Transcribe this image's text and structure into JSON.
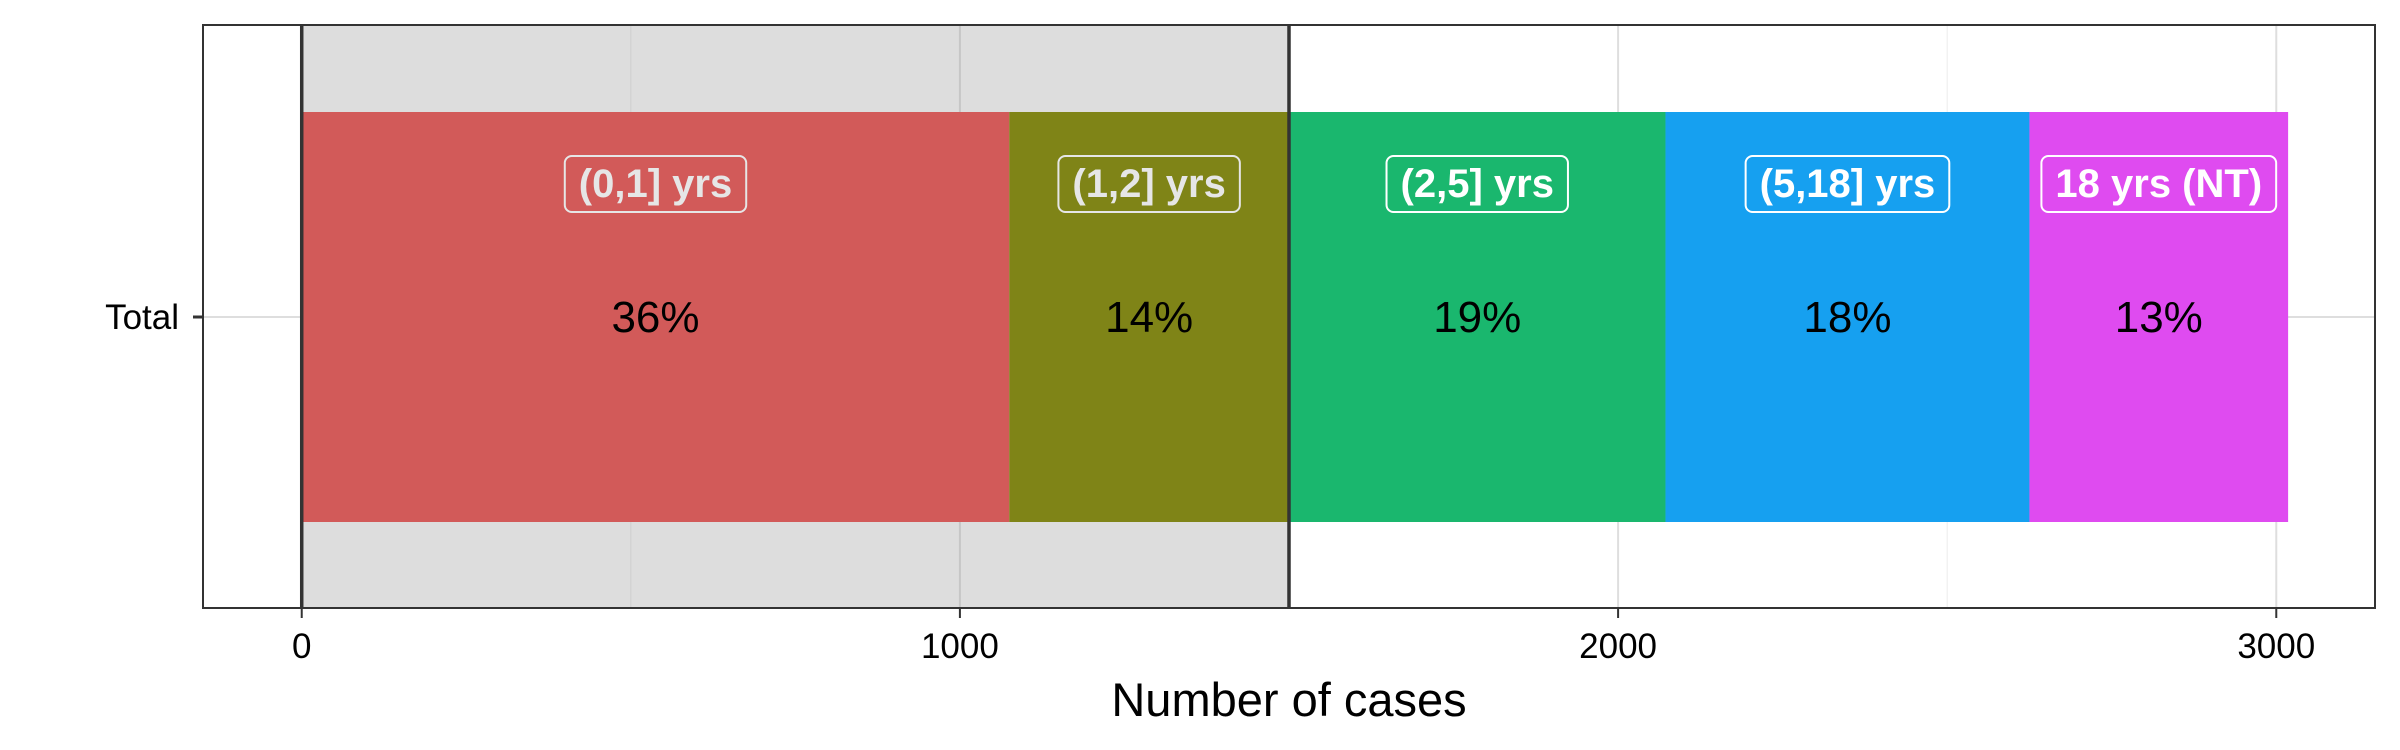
{
  "chart_data": {
    "type": "bar",
    "orientation": "horizontal",
    "stacked": true,
    "categories": [
      "Total"
    ],
    "xlabel": "Number of cases",
    "ylabel": "",
    "title": "",
    "xlim": [
      -150,
      3150
    ],
    "x_ticks": [
      0,
      1000,
      2000,
      3000
    ],
    "x_tick_labels": [
      "0",
      "1000",
      "2000",
      "3000"
    ],
    "grid": true,
    "shaded_region": {
      "from": 0,
      "to": 1500,
      "color": "#d9d9d9"
    },
    "series": [
      {
        "name": "(0,1] yrs",
        "values": [
          1075
        ],
        "percent_label": "36%",
        "color": "#d25a59"
      },
      {
        "name": "(1,2] yrs",
        "values": [
          425
        ],
        "percent_label": "14%",
        "color": "#7f8417"
      },
      {
        "name": "(2,5] yrs",
        "values": [
          572
        ],
        "percent_label": "19%",
        "color": "#1ab76e"
      },
      {
        "name": "(5,18] yrs",
        "values": [
          553
        ],
        "percent_label": "18%",
        "color": "#16a0f0"
      },
      {
        "name": "18 yrs (NT)",
        "values": [
          393
        ],
        "percent_label": "13%",
        "color": "#df4bf0"
      }
    ]
  }
}
